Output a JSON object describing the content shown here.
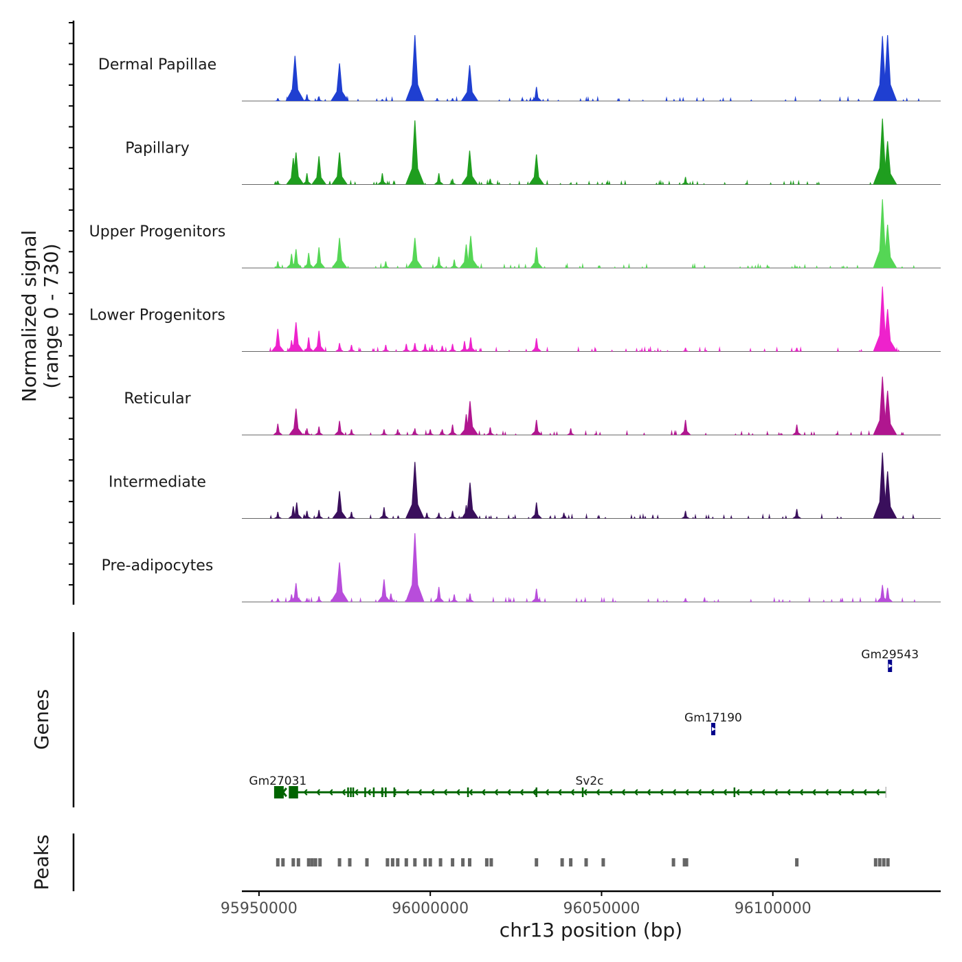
{
  "chart_data": {
    "type": "area",
    "title": "",
    "ylabel_line1": "Normalized signal",
    "ylabel_line2": "(range 0 - 730)",
    "ylim": [
      0,
      730
    ],
    "xlabel": "chr13 position (bp)",
    "xlim": [
      95945000,
      96149000
    ],
    "x_ticks": [
      95950000,
      96000000,
      96050000,
      96100000
    ],
    "x_tick_labels": [
      "95950000",
      "96000000",
      "96050000",
      "96100000"
    ],
    "tracks": [
      {
        "name": "Dermal Papillae",
        "color": "#1f3fd1",
        "peaks": [
          [
            95955500,
            30
          ],
          [
            95959500,
            120
          ],
          [
            95960500,
            480
          ],
          [
            95964000,
            70
          ],
          [
            95967500,
            50
          ],
          [
            95973500,
            400
          ],
          [
            95986000,
            20
          ],
          [
            95995500,
            700
          ],
          [
            96002000,
            30
          ],
          [
            96006500,
            30
          ],
          [
            96011500,
            380
          ],
          [
            96031000,
            150
          ],
          [
            96132000,
            690
          ],
          [
            96133500,
            700
          ]
        ]
      },
      {
        "name": "Papillary",
        "color": "#1f9e1f",
        "peaks": [
          [
            95955500,
            40
          ],
          [
            95960000,
            280
          ],
          [
            95960800,
            340
          ],
          [
            95964000,
            120
          ],
          [
            95967500,
            300
          ],
          [
            95973500,
            340
          ],
          [
            95986000,
            120
          ],
          [
            95995500,
            680
          ],
          [
            96002500,
            120
          ],
          [
            96006500,
            60
          ],
          [
            96011500,
            360
          ],
          [
            96017500,
            60
          ],
          [
            96031000,
            320
          ],
          [
            96074500,
            80
          ],
          [
            96132000,
            700
          ],
          [
            96133500,
            460
          ]
        ]
      },
      {
        "name": "Upper Progenitors",
        "color": "#55d655",
        "peaks": [
          [
            95955500,
            70
          ],
          [
            95959500,
            150
          ],
          [
            95960800,
            200
          ],
          [
            95964500,
            160
          ],
          [
            95967500,
            220
          ],
          [
            95973500,
            320
          ],
          [
            95987000,
            70
          ],
          [
            95995500,
            320
          ],
          [
            96002500,
            120
          ],
          [
            96007000,
            90
          ],
          [
            96010500,
            250
          ],
          [
            96011800,
            340
          ],
          [
            96031000,
            220
          ],
          [
            96132000,
            730
          ],
          [
            96133500,
            460
          ]
        ]
      },
      {
        "name": "Lower Progenitors",
        "color": "#ee22cc",
        "peaks": [
          [
            95955500,
            240
          ],
          [
            95959500,
            120
          ],
          [
            95960800,
            310
          ],
          [
            95964500,
            150
          ],
          [
            95967500,
            220
          ],
          [
            95973500,
            90
          ],
          [
            95977000,
            70
          ],
          [
            95987000,
            70
          ],
          [
            95993000,
            80
          ],
          [
            95995500,
            90
          ],
          [
            95998500,
            80
          ],
          [
            96000500,
            70
          ],
          [
            96003500,
            60
          ],
          [
            96006500,
            80
          ],
          [
            96010000,
            110
          ],
          [
            96011800,
            150
          ],
          [
            96031000,
            140
          ],
          [
            96074500,
            40
          ],
          [
            96107000,
            40
          ],
          [
            96132000,
            690
          ],
          [
            96133500,
            450
          ]
        ]
      },
      {
        "name": "Reticular",
        "color": "#b0168f",
        "peaks": [
          [
            95955500,
            120
          ],
          [
            95960800,
            280
          ],
          [
            95964000,
            70
          ],
          [
            95967500,
            90
          ],
          [
            95973500,
            150
          ],
          [
            95977000,
            60
          ],
          [
            95986500,
            60
          ],
          [
            95990500,
            60
          ],
          [
            95995500,
            70
          ],
          [
            96000000,
            60
          ],
          [
            96003500,
            60
          ],
          [
            96006500,
            110
          ],
          [
            96010500,
            220
          ],
          [
            96011600,
            360
          ],
          [
            96017500,
            80
          ],
          [
            96031000,
            160
          ],
          [
            96041000,
            70
          ],
          [
            96074500,
            160
          ],
          [
            96107000,
            110
          ],
          [
            96130500,
            80
          ],
          [
            96132000,
            620
          ],
          [
            96133500,
            470
          ]
        ]
      },
      {
        "name": "Intermediate",
        "color": "#3a0f5c",
        "peaks": [
          [
            95955500,
            70
          ],
          [
            95960000,
            130
          ],
          [
            95961000,
            170
          ],
          [
            95964000,
            80
          ],
          [
            95967500,
            90
          ],
          [
            95973500,
            290
          ],
          [
            95977000,
            70
          ],
          [
            95986500,
            120
          ],
          [
            95995500,
            600
          ],
          [
            95999000,
            60
          ],
          [
            96002500,
            60
          ],
          [
            96006500,
            80
          ],
          [
            96010500,
            140
          ],
          [
            96011600,
            380
          ],
          [
            96031000,
            170
          ],
          [
            96039000,
            60
          ],
          [
            96074500,
            80
          ],
          [
            96107000,
            100
          ],
          [
            96132000,
            700
          ],
          [
            96133500,
            500
          ]
        ]
      },
      {
        "name": "Pre-adipocytes",
        "color": "#b84ddb",
        "peaks": [
          [
            95955500,
            40
          ],
          [
            95959500,
            80
          ],
          [
            95960800,
            200
          ],
          [
            95964000,
            40
          ],
          [
            95967500,
            60
          ],
          [
            95973500,
            420
          ],
          [
            95986500,
            240
          ],
          [
            95988500,
            90
          ],
          [
            95995500,
            730
          ],
          [
            96002500,
            160
          ],
          [
            96007000,
            80
          ],
          [
            96011600,
            90
          ],
          [
            96031000,
            140
          ],
          [
            96074500,
            40
          ],
          [
            96132000,
            180
          ],
          [
            96133500,
            150
          ]
        ]
      }
    ],
    "genes": [
      {
        "name": "Gm27031",
        "strand": "-",
        "color": "#006400",
        "start": 95954800,
        "end": 95956800,
        "label_x": 95955500
      },
      {
        "name": "Sv2c",
        "strand": "-",
        "color": "#006400",
        "start": 95959600,
        "end": 96133000,
        "label_x": 96046500,
        "exons": [
          95959600,
          95960500,
          95976000,
          95976800,
          95977500,
          95981000,
          95983500,
          95986000,
          95987000,
          95989500,
          96011000,
          96031000,
          96044500,
          96088800
        ]
      },
      {
        "name": "Gm17190",
        "strand": "+",
        "color": "#00008b",
        "start": 96082300,
        "end": 96082900,
        "label_x": 96082600
      },
      {
        "name": "Gm29543",
        "strand": "+",
        "color": "#00008b",
        "start": 96133900,
        "end": 96134500,
        "label_x": 96134200
      }
    ],
    "gene_rows": {
      "Gm29543": 0,
      "Gm17190": 1,
      "Gm27031": 2,
      "Sv2c": 2
    },
    "peaks_regions": [
      95955500,
      95957000,
      95960000,
      95961500,
      95964500,
      95965500,
      95966500,
      95967800,
      95973500,
      95976500,
      95981500,
      95987500,
      95989000,
      95990500,
      95993000,
      95995500,
      95998500,
      96000000,
      96003000,
      96006500,
      96009500,
      96011500,
      96016500,
      96017800,
      96031000,
      96038500,
      96041000,
      96045500,
      96050500,
      96071000,
      96074200,
      96074800,
      96107000,
      96130000,
      96131200,
      96132400,
      96133600
    ]
  },
  "panels": {
    "genes_ylabel": "Genes",
    "peaks_ylabel": "Peaks"
  },
  "colors": {
    "axis": "#000000",
    "baseline": "#666666",
    "peak_region": "#666666",
    "tick_text": "#4d4d4d"
  }
}
